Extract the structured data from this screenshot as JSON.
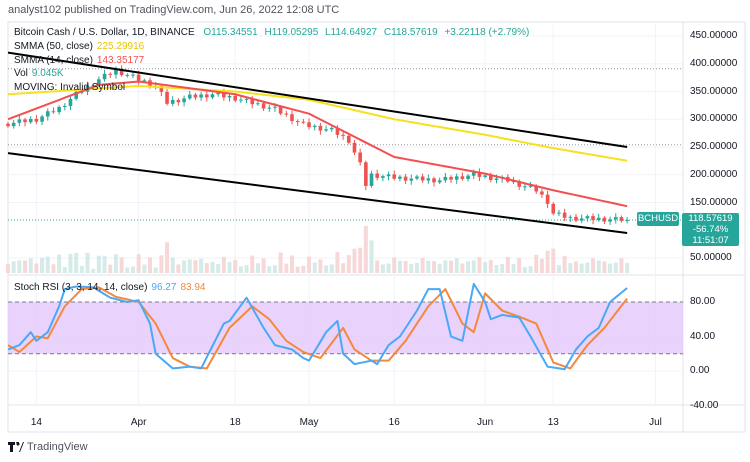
{
  "header": "analyst102 published on TradingView.com, Jun 26, 2022 12:08 UTC",
  "legend": {
    "symbol": "Bitcoin Cash / U.S. Dollar, 1D, BINANCE",
    "open": "O115.34551",
    "high": "H119.05295",
    "low": "L114.64927",
    "close": "C118.57619",
    "change": "+3.22118 (+2.79%)",
    "smma50_label": "SMMA (50, close)",
    "smma50_value": "225.29916",
    "smma14_label": "SMMA (14, close)",
    "smma14_value": "143.35177",
    "vol_label": "Vol",
    "vol_value": "9.045K",
    "moving": "MOVING: Invalid Symbol"
  },
  "price_label": {
    "symbol": "BCHUSD",
    "price": "118.57619",
    "pct": "-56.74%",
    "countdown": "11:51:07"
  },
  "rsi_legend": {
    "label": "Stoch RSI (3, 3, 14, 14, close)",
    "k": "96.27",
    "d": "83.94"
  },
  "brand": "TradingView",
  "colors": {
    "up": "#26a69a",
    "down": "#ef5350",
    "smma50": "#f7e01c",
    "smma14": "#f44f4f",
    "k": "#4aa8f5",
    "d": "#f4883c",
    "band": "#e3c8fb",
    "trend": "#000000"
  },
  "chart_data": [
    {
      "type": "candlestick",
      "ylim": [
        50,
        450
      ],
      "yticks": [
        "450.00000",
        "400.00000",
        "350.00000",
        "300.00000",
        "250.00000",
        "200.00000",
        "150.00000",
        "50.00000"
      ],
      "ytick_values": [
        450,
        400,
        350,
        300,
        250,
        200,
        150,
        50
      ],
      "xticks": [
        {
          "label": "14",
          "date": "2022-03-14"
        },
        {
          "label": "Apr",
          "date": "2022-04-01"
        },
        {
          "label": "18",
          "date": "2022-04-18"
        },
        {
          "label": "May",
          "date": "2022-05-01"
        },
        {
          "label": "16",
          "date": "2022-05-16"
        },
        {
          "label": "Jun",
          "date": "2022-06-01"
        },
        {
          "label": "13",
          "date": "2022-06-13"
        },
        {
          "label": "Jul",
          "date": "2022-07-01"
        }
      ],
      "x_range": [
        "2022-03-09",
        "2022-07-07"
      ],
      "close_keypoints": [
        [
          "2022-03-09",
          292
        ],
        [
          "2022-03-14",
          300
        ],
        [
          "2022-03-18",
          320
        ],
        [
          "2022-03-21",
          345
        ],
        [
          "2022-03-25",
          372
        ],
        [
          "2022-03-28",
          388
        ],
        [
          "2022-04-01",
          372
        ],
        [
          "2022-04-04",
          360
        ],
        [
          "2022-04-06",
          330
        ],
        [
          "2022-04-10",
          340
        ],
        [
          "2022-04-14",
          345
        ],
        [
          "2022-04-18",
          338
        ],
        [
          "2022-04-25",
          318
        ],
        [
          "2022-04-30",
          290
        ],
        [
          "2022-05-05",
          280
        ],
        [
          "2022-05-08",
          262
        ],
        [
          "2022-05-10",
          218
        ],
        [
          "2022-05-11",
          182
        ],
        [
          "2022-05-12",
          200
        ],
        [
          "2022-05-16",
          195
        ],
        [
          "2022-05-24",
          190
        ],
        [
          "2022-05-30",
          200
        ],
        [
          "2022-06-05",
          190
        ],
        [
          "2022-06-10",
          172
        ],
        [
          "2022-06-12",
          152
        ],
        [
          "2022-06-13",
          130
        ],
        [
          "2022-06-16",
          122
        ],
        [
          "2022-06-22",
          120
        ],
        [
          "2022-06-26",
          118.58
        ]
      ],
      "smma50": [
        [
          "2022-03-09",
          345
        ],
        [
          "2022-04-01",
          360
        ],
        [
          "2022-04-18",
          350
        ],
        [
          "2022-05-01",
          335
        ],
        [
          "2022-05-16",
          300
        ],
        [
          "2022-06-01",
          272
        ],
        [
          "2022-06-13",
          248
        ],
        [
          "2022-06-26",
          225.3
        ]
      ],
      "smma14": [
        [
          "2022-03-09",
          300
        ],
        [
          "2022-03-25",
          362
        ],
        [
          "2022-04-01",
          368
        ],
        [
          "2022-04-18",
          345
        ],
        [
          "2022-05-01",
          310
        ],
        [
          "2022-05-16",
          232
        ],
        [
          "2022-06-01",
          202
        ],
        [
          "2022-06-13",
          172
        ],
        [
          "2022-06-26",
          143.35
        ]
      ],
      "trendlines": [
        [
          [
            "2022-03-09",
            420
          ],
          [
            "2022-06-26",
            250
          ]
        ],
        [
          [
            "2022-03-09",
            239
          ],
          [
            "2022-06-26",
            95
          ]
        ]
      ],
      "reference_lines": [
        391,
        254
      ],
      "last_price": 118.58
    },
    {
      "type": "line",
      "title": "Stoch RSI (3, 3, 14, 14, close)",
      "ylim": [
        -45,
        110
      ],
      "yticks": [
        "80.00",
        "40.00",
        "0.00",
        "-40.00"
      ],
      "ytick_values": [
        80,
        40,
        0,
        -40
      ],
      "band": [
        20,
        80
      ],
      "series": [
        {
          "name": "K",
          "values": [
            [
              "2022-03-09",
              25
            ],
            [
              "2022-03-11",
              30
            ],
            [
              "2022-03-13",
              45
            ],
            [
              "2022-03-14",
              35
            ],
            [
              "2022-03-16",
              45
            ],
            [
              "2022-03-18",
              75
            ],
            [
              "2022-03-19",
              95
            ],
            [
              "2022-03-21",
              98
            ],
            [
              "2022-03-24",
              97
            ],
            [
              "2022-03-27",
              85
            ],
            [
              "2022-03-30",
              80
            ],
            [
              "2022-04-01",
              82
            ],
            [
              "2022-04-03",
              55
            ],
            [
              "2022-04-04",
              20
            ],
            [
              "2022-04-07",
              3
            ],
            [
              "2022-04-10",
              5
            ],
            [
              "2022-04-12",
              3
            ],
            [
              "2022-04-16",
              55
            ],
            [
              "2022-04-17",
              58
            ],
            [
              "2022-04-20",
              85
            ],
            [
              "2022-04-23",
              50
            ],
            [
              "2022-04-25",
              30
            ],
            [
              "2022-04-28",
              25
            ],
            [
              "2022-04-30",
              15
            ],
            [
              "2022-05-01",
              12
            ],
            [
              "2022-05-04",
              45
            ],
            [
              "2022-05-06",
              58
            ],
            [
              "2022-05-07",
              20
            ],
            [
              "2022-05-09",
              8
            ],
            [
              "2022-05-12",
              12
            ],
            [
              "2022-05-13",
              8
            ],
            [
              "2022-05-15",
              30
            ],
            [
              "2022-05-17",
              40
            ],
            [
              "2022-05-20",
              70
            ],
            [
              "2022-05-22",
              95
            ],
            [
              "2022-05-24",
              95
            ],
            [
              "2022-05-26",
              40
            ],
            [
              "2022-05-28",
              35
            ],
            [
              "2022-05-30",
              101
            ],
            [
              "2022-06-01",
              80
            ],
            [
              "2022-06-02",
              60
            ],
            [
              "2022-06-04",
              65
            ],
            [
              "2022-06-07",
              62
            ],
            [
              "2022-06-09",
              40
            ],
            [
              "2022-06-12",
              5
            ],
            [
              "2022-06-15",
              2
            ],
            [
              "2022-06-17",
              25
            ],
            [
              "2022-06-19",
              40
            ],
            [
              "2022-06-21",
              50
            ],
            [
              "2022-06-23",
              80
            ],
            [
              "2022-06-26",
              96.27
            ]
          ]
        },
        {
          "name": "D",
          "values": [
            [
              "2022-03-09",
              30
            ],
            [
              "2022-03-11",
              22
            ],
            [
              "2022-03-14",
              40
            ],
            [
              "2022-03-16",
              38
            ],
            [
              "2022-03-19",
              75
            ],
            [
              "2022-03-22",
              95
            ],
            [
              "2022-03-25",
              97
            ],
            [
              "2022-03-28",
              86
            ],
            [
              "2022-04-01",
              80
            ],
            [
              "2022-04-04",
              55
            ],
            [
              "2022-04-07",
              15
            ],
            [
              "2022-04-10",
              5
            ],
            [
              "2022-04-13",
              3
            ],
            [
              "2022-04-17",
              50
            ],
            [
              "2022-04-21",
              75
            ],
            [
              "2022-04-24",
              60
            ],
            [
              "2022-04-27",
              35
            ],
            [
              "2022-04-30",
              22
            ],
            [
              "2022-05-03",
              15
            ],
            [
              "2022-05-07",
              50
            ],
            [
              "2022-05-09",
              25
            ],
            [
              "2022-05-12",
              12
            ],
            [
              "2022-05-15",
              12
            ],
            [
              "2022-05-18",
              35
            ],
            [
              "2022-05-22",
              75
            ],
            [
              "2022-05-25",
              95
            ],
            [
              "2022-05-28",
              55
            ],
            [
              "2022-05-30",
              45
            ],
            [
              "2022-06-01",
              90
            ],
            [
              "2022-06-04",
              70
            ],
            [
              "2022-06-07",
              63
            ],
            [
              "2022-06-10",
              55
            ],
            [
              "2022-06-13",
              10
            ],
            [
              "2022-06-16",
              3
            ],
            [
              "2022-06-19",
              30
            ],
            [
              "2022-06-22",
              50
            ],
            [
              "2022-06-26",
              83.94
            ]
          ]
        }
      ]
    }
  ]
}
